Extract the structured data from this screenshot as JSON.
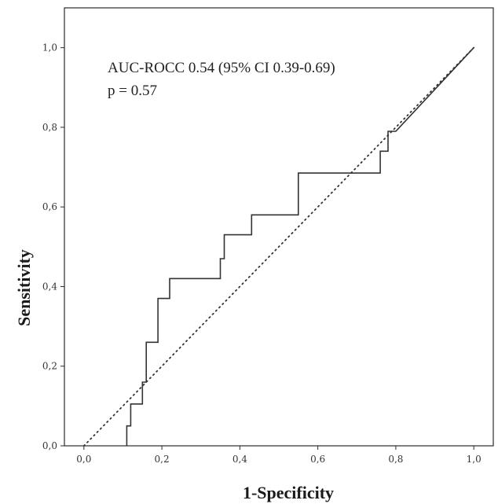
{
  "chart_data": {
    "type": "line",
    "title": "",
    "xlabel": "1-Specificity",
    "ylabel": "Sensitivity",
    "xlim": [
      -0.05,
      1.05
    ],
    "ylim": [
      0.0,
      1.1
    ],
    "grid": false,
    "x_ticks": [
      0.0,
      0.2,
      0.4,
      0.6,
      0.8,
      1.0
    ],
    "x_tick_labels": [
      "0,0",
      "0,2",
      "0,4",
      "0,6",
      "0,8",
      "1,0"
    ],
    "y_ticks": [
      0.0,
      0.2,
      0.4,
      0.6,
      0.8,
      1.0
    ],
    "y_tick_labels": [
      "0,0",
      "0,2",
      "0,4",
      "0,6",
      "0,8",
      "1,0"
    ],
    "annotations": [
      "AUC-ROCC 0.54 (95% CI 0.39-0.69)",
      "p = 0.57"
    ],
    "series": [
      {
        "style": "solid",
        "color": "#333333",
        "x": [
          0.11,
          0.11,
          0.12,
          0.12,
          0.14,
          0.14,
          0.15,
          0.15,
          0.16,
          0.16,
          0.19,
          0.19,
          0.22,
          0.22,
          0.35,
          0.35,
          0.36,
          0.36,
          0.43,
          0.43,
          0.55,
          0.55,
          0.76,
          0.76,
          0.78,
          0.78,
          0.8,
          1.0
        ],
        "y": [
          0.0,
          0.05,
          0.05,
          0.105,
          0.105,
          0.105,
          0.105,
          0.16,
          0.16,
          0.26,
          0.26,
          0.37,
          0.37,
          0.42,
          0.42,
          0.47,
          0.47,
          0.53,
          0.53,
          0.58,
          0.58,
          0.685,
          0.685,
          0.74,
          0.74,
          0.79,
          0.79,
          1.0
        ]
      },
      {
        "style": "dotted",
        "color": "#333333",
        "x": [
          0.0,
          1.0
        ],
        "y": [
          0.0,
          1.0
        ]
      }
    ]
  }
}
